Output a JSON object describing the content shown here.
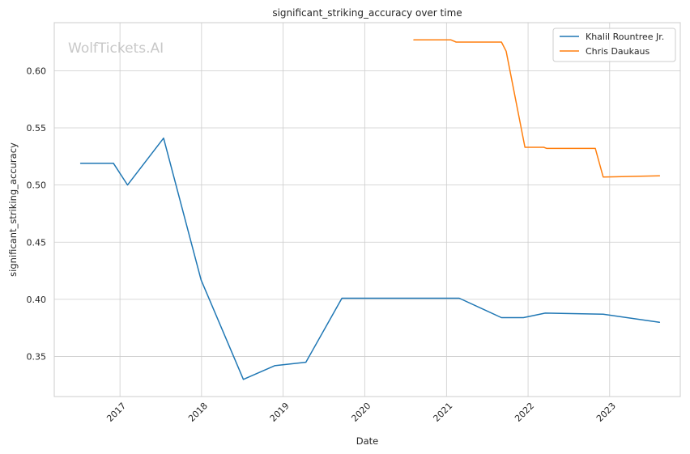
{
  "chart_data": {
    "type": "line",
    "title": "significant_striking_accuracy over time",
    "xlabel": "Date",
    "ylabel": "significant_striking_accuracy",
    "watermark": "WolfTickets.AI",
    "x_ticks": [
      "2017",
      "2018",
      "2019",
      "2020",
      "2021",
      "2022",
      "2023"
    ],
    "y_ticks": [
      "0.35",
      "0.40",
      "0.45",
      "0.50",
      "0.55",
      "0.60"
    ],
    "xlim": [
      "2016-03-13",
      "2023-11-13"
    ],
    "ylim": [
      0.315,
      0.642
    ],
    "grid": true,
    "legend_position": "top-right",
    "series": [
      {
        "name": "Khalil Rountree Jr.",
        "color": "#1f77b4",
        "x": [
          "2016-07-09",
          "2016-12-03",
          "2017-02-04",
          "2017-07-15",
          "2017-12-30",
          "2018-07-07",
          "2018-11-24",
          "2019-04-13",
          "2019-09-21",
          "2020-10-03",
          "2021-02-27",
          "2021-09-04",
          "2021-12-11",
          "2022-03-19",
          "2022-12-03",
          "2023-08-12"
        ],
        "values": [
          0.519,
          0.519,
          0.5,
          0.541,
          0.417,
          0.33,
          0.342,
          0.345,
          0.401,
          0.401,
          0.401,
          0.384,
          0.384,
          0.388,
          0.387,
          0.38
        ]
      },
      {
        "name": "Chris Daukaus",
        "color": "#ff7f0e",
        "x": [
          "2020-08-08",
          "2021-01-20",
          "2021-02-13",
          "2021-09-04",
          "2021-09-25",
          "2021-12-18",
          "2022-03-12",
          "2022-03-26",
          "2022-10-29",
          "2022-12-03",
          "2023-08-12"
        ],
        "values": [
          0.627,
          0.627,
          0.625,
          0.625,
          0.617,
          0.533,
          0.533,
          0.532,
          0.532,
          0.507,
          0.508
        ]
      }
    ]
  }
}
